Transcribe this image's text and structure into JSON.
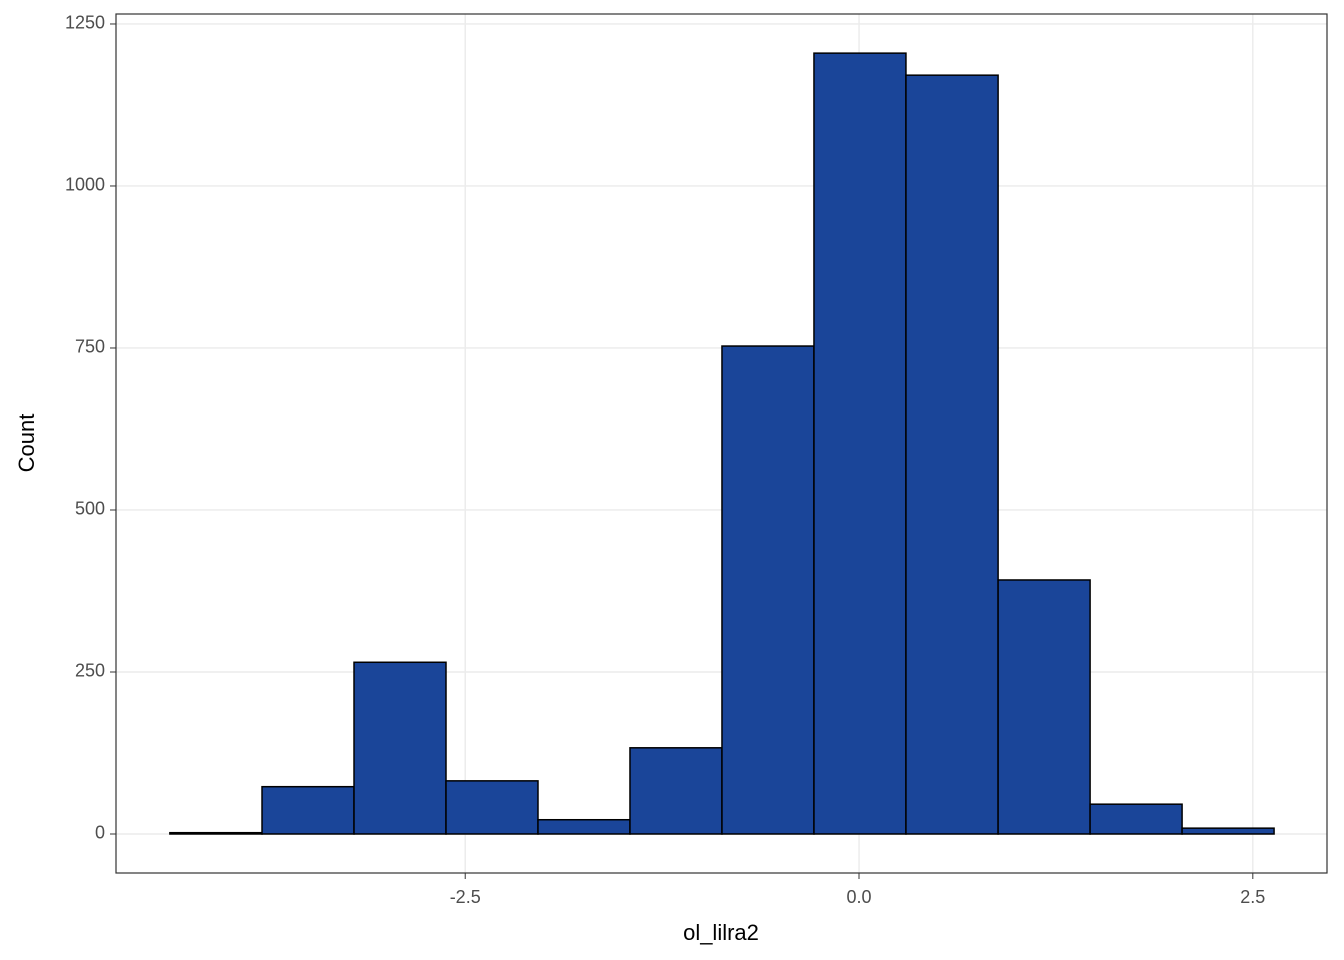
{
  "chart_data": {
    "type": "histogram",
    "x_label": "ol_lilra2",
    "y_label": "Count",
    "bins": [
      -4.375,
      -3.79,
      -3.206,
      -2.622,
      -2.038,
      -1.454,
      -0.87,
      -0.286,
      0.298,
      0.883,
      1.467,
      2.051,
      2.635
    ],
    "values": [
      2,
      73,
      265,
      82,
      22,
      133,
      753,
      1205,
      1171,
      392,
      46,
      9
    ],
    "color": "#1a4599",
    "edge_color": "#000000",
    "xlim": [
      -4.717,
      2.971
    ],
    "ylim": [
      -60.2,
      1265.4
    ],
    "xticks": [
      {
        "value": -2.5,
        "label": "-2.5"
      },
      {
        "value": 0,
        "label": "0.0"
      },
      {
        "value": 2.5,
        "label": "2.5"
      }
    ],
    "yticks": [
      0,
      250,
      500,
      750,
      1000,
      1250
    ],
    "grid": true
  }
}
